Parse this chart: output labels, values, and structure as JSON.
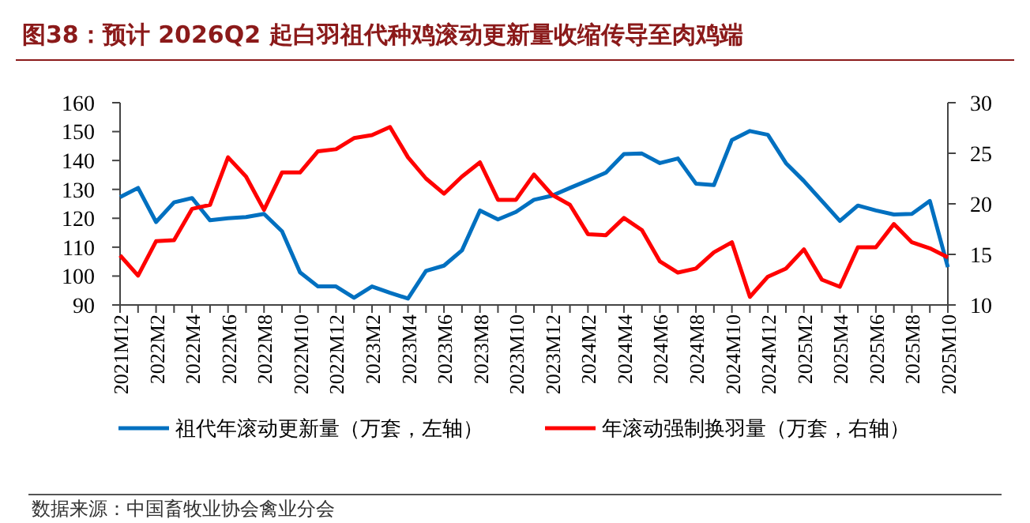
{
  "chart_data": {
    "type": "line",
    "title": "图38：预计 2026Q2 起白羽祖代种鸡滚动更新量收缩传导至肉鸡端",
    "categories": [
      "2021M12",
      null,
      "2022M2",
      null,
      "2022M4",
      null,
      "2022M6",
      null,
      "2022M8",
      null,
      "2022M10",
      null,
      "2022M12",
      null,
      "2023M2",
      null,
      "2023M4",
      null,
      "2023M6",
      null,
      "2023M8",
      null,
      "2023M10",
      null,
      "2023M12",
      null,
      "2024M2",
      null,
      "2024M4",
      null,
      "2024M6",
      null,
      "2024M8",
      null,
      "2024M10",
      null,
      "2024M12",
      null,
      "2025M2",
      null,
      "2025M4",
      null,
      "2025M6",
      null,
      "2025M8",
      null,
      "2025M10"
    ],
    "series": [
      {
        "name": "祖代年滚动更新量（万套，左轴）",
        "color": "#0070c0",
        "values": [
          127.3,
          130.5,
          118.7,
          125.5,
          127,
          119.3,
          120,
          120.4,
          121.5,
          115.5,
          101.3,
          96.4,
          96.4,
          92.5,
          96.4,
          94.2,
          92.2,
          101.8,
          103.6,
          108.9,
          122.7,
          119.6,
          122.2,
          126.4,
          127.8,
          130.5,
          133.1,
          135.8,
          142.2,
          142.4,
          139.1,
          140.7,
          132,
          131.5,
          147.1,
          150.2,
          148.9,
          139.1,
          132.9,
          126,
          119.1,
          124.4,
          122.7,
          121.3,
          121.5,
          126,
          103.1
        ]
      },
      {
        "name": "年滚动强制换羽量（万套，右轴）",
        "color": "#ff0000",
        "axis": "y2",
        "values": [
          14.9,
          12.9,
          16.3,
          16.4,
          19.5,
          19.9,
          24.6,
          22.7,
          19.4,
          23.1,
          23.1,
          25.2,
          25.4,
          26.5,
          26.8,
          27.6,
          24.6,
          22.5,
          21.0,
          22.7,
          24.1,
          20.4,
          20.4,
          22.9,
          20.9,
          19.9,
          17.0,
          16.9,
          18.6,
          17.4,
          14.3,
          13.2,
          13.6,
          15.2,
          16.2,
          10.8,
          12.8,
          13.6,
          15.5,
          12.5,
          11.8,
          15.7,
          15.7,
          18.0,
          16.2,
          15.6,
          14.7
        ]
      }
    ],
    "ylim": [
      90,
      160
    ],
    "yticks": [
      90,
      100,
      110,
      120,
      130,
      140,
      150,
      160
    ],
    "y2lim": [
      10,
      30
    ],
    "y2ticks": [
      10,
      15,
      20,
      25,
      30
    ],
    "legend": "bottom",
    "grid": false,
    "annotations": [
      "数据来源：中国畜牧业协会禽业分会"
    ]
  }
}
